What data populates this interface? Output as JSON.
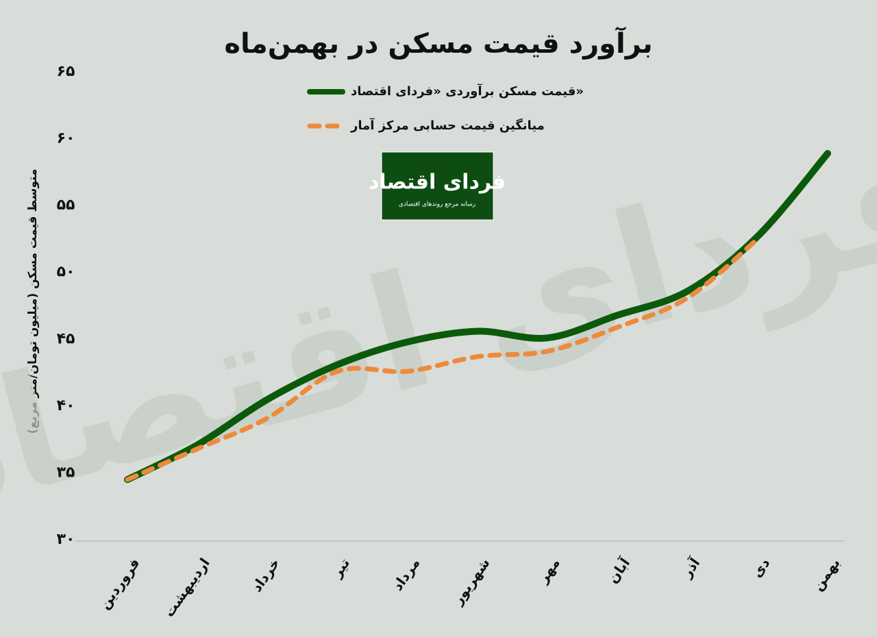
{
  "chart_data": {
    "type": "line",
    "title": "برآورد قیمت مسکن در بهمن‌ماه",
    "y_label": "متوسط قیمت مسکن (میلیون تومان/متر مربع)",
    "logo": {
      "title": "فردای اقتصاد",
      "subtitle": "رسانه مرجع روندهای اقتصادی"
    },
    "categories": [
      "فروردین",
      "اردیبهشت",
      "خرداد",
      "تیر",
      "مرداد",
      "شهریور",
      "مهر",
      "آبان",
      "آذر",
      "دی",
      "بهمن"
    ],
    "series": [
      {
        "name": "قیمت مسکن برآوردی «فردای اقتصاد»",
        "color": "#0b5a0b",
        "style": "solid",
        "values": [
          34.5,
          37.1,
          40.5,
          43.1,
          44.8,
          45.6,
          45.1,
          46.8,
          48.6,
          52.7,
          58.9
        ]
      },
      {
        "name": "میانگین قیمت حسابی مرکز آمار",
        "color": "#ee8a3c",
        "style": "dashed",
        "values": [
          34.5,
          36.8,
          39.1,
          42.6,
          42.6,
          43.7,
          44.1,
          45.9,
          48.1,
          52.5,
          null
        ]
      }
    ],
    "ylim": [
      30,
      65
    ],
    "yticks": [
      {
        "value": 30,
        "label": "۳۰"
      },
      {
        "value": 35,
        "label": "۳۵"
      },
      {
        "value": 40,
        "label": "۴۰"
      },
      {
        "value": 45,
        "label": "۴۵"
      },
      {
        "value": 50,
        "label": "۵۰"
      },
      {
        "value": 55,
        "label": "۵۵"
      },
      {
        "value": 60,
        "label": "۶۰"
      },
      {
        "value": 65,
        "label": "۶۵"
      }
    ],
    "grid": false
  }
}
